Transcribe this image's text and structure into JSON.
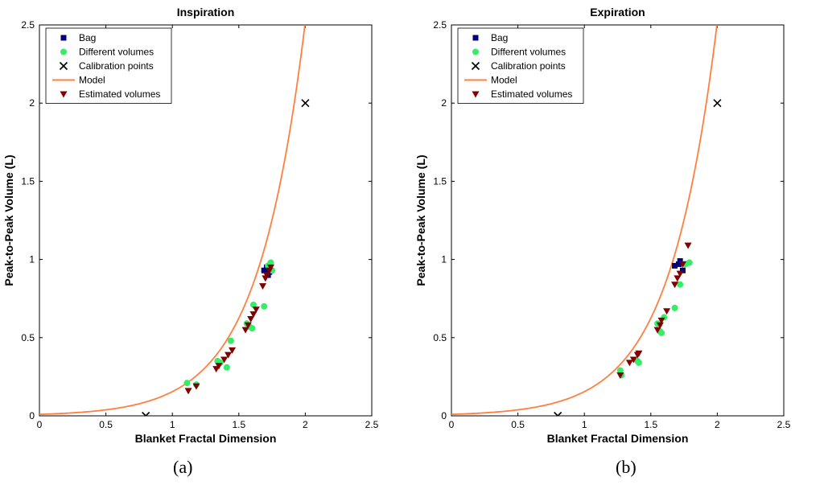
{
  "figure": {
    "panel_labels": [
      "(a)",
      "(b)"
    ]
  },
  "chart_data": [
    {
      "type": "scatter",
      "title": "Inspiration",
      "xlabel": "Blanket Fractal Dimension",
      "ylabel": "Peak-to-Peak Volume (L)",
      "xlim": [
        0,
        2.5
      ],
      "ylim": [
        0,
        2.5
      ],
      "xticks": [
        0,
        0.5,
        1,
        1.5,
        2,
        2.5
      ],
      "yticks": [
        0,
        0.5,
        1,
        1.5,
        2,
        2.5
      ],
      "xtick_labels": [
        "0",
        "0.5",
        "1",
        "1.5",
        "2",
        "2.5"
      ],
      "ytick_labels": [
        "0",
        "0.5",
        "1",
        "1.5",
        "2",
        "2.5"
      ],
      "legend_position": "top-left",
      "legend": [
        {
          "label": "Bag",
          "marker": "square",
          "color": "#00007f"
        },
        {
          "label": "Different volumes",
          "marker": "circle",
          "color": "#33ee66"
        },
        {
          "label": "Calibration points",
          "marker": "x",
          "color": "#000000"
        },
        {
          "label": "Model",
          "marker": "line",
          "color": "#ff7f3f"
        },
        {
          "label": "Estimated volumes",
          "marker": "triangle-down",
          "color": "#800000"
        }
      ],
      "model": {
        "name": "Model",
        "a": 0.00951,
        "b": 2.79,
        "x_range": [
          0,
          2.08
        ]
      },
      "series": [
        {
          "name": "Bag",
          "points": [
            [
              1.69,
              0.93
            ],
            [
              1.71,
              0.95
            ],
            [
              1.73,
              0.92
            ],
            [
              1.72,
              0.9
            ]
          ]
        },
        {
          "name": "Different volumes",
          "points": [
            [
              1.11,
              0.21
            ],
            [
              1.18,
              0.2
            ],
            [
              1.34,
              0.35
            ],
            [
              1.36,
              0.34
            ],
            [
              1.41,
              0.31
            ],
            [
              1.44,
              0.48
            ],
            [
              1.56,
              0.59
            ],
            [
              1.58,
              0.57
            ],
            [
              1.61,
              0.71
            ],
            [
              1.6,
              0.56
            ],
            [
              1.69,
              0.7
            ],
            [
              1.72,
              0.96
            ],
            [
              1.74,
              0.98
            ],
            [
              1.75,
              0.93
            ]
          ]
        },
        {
          "name": "Calibration points",
          "points": [
            [
              0.8,
              0.0
            ],
            [
              2.0,
              2.0
            ]
          ]
        },
        {
          "name": "Estimated volumes",
          "points": [
            [
              1.12,
              0.16
            ],
            [
              1.18,
              0.19
            ],
            [
              1.33,
              0.3
            ],
            [
              1.35,
              0.32
            ],
            [
              1.39,
              0.36
            ],
            [
              1.42,
              0.39
            ],
            [
              1.45,
              0.42
            ],
            [
              1.55,
              0.55
            ],
            [
              1.57,
              0.58
            ],
            [
              1.59,
              0.62
            ],
            [
              1.61,
              0.65
            ],
            [
              1.63,
              0.68
            ],
            [
              1.68,
              0.83
            ],
            [
              1.7,
              0.88
            ],
            [
              1.71,
              0.9
            ],
            [
              1.73,
              0.93
            ],
            [
              1.74,
              0.95
            ]
          ]
        }
      ]
    },
    {
      "type": "scatter",
      "title": "Expiration",
      "xlabel": "Blanket Fractal Dimension",
      "ylabel": "Peak-to-Peak Volume (L)",
      "xlim": [
        0,
        2.5
      ],
      "ylim": [
        0,
        2.5
      ],
      "xticks": [
        0,
        0.5,
        1,
        1.5,
        2,
        2.5
      ],
      "yticks": [
        0,
        0.5,
        1,
        1.5,
        2,
        2.5
      ],
      "xtick_labels": [
        "0",
        "0.5",
        "1",
        "1.5",
        "2",
        "2.5"
      ],
      "ytick_labels": [
        "0",
        "0.5",
        "1",
        "1.5",
        "2",
        "2.5"
      ],
      "legend_position": "top-left",
      "legend": [
        {
          "label": "Bag",
          "marker": "square",
          "color": "#00007f"
        },
        {
          "label": "Different volumes",
          "marker": "circle",
          "color": "#33ee66"
        },
        {
          "label": "Calibration points",
          "marker": "x",
          "color": "#000000"
        },
        {
          "label": "Model",
          "marker": "line",
          "color": "#ff7f3f"
        },
        {
          "label": "Estimated volumes",
          "marker": "triangle-down",
          "color": "#800000"
        }
      ],
      "model": {
        "name": "Model",
        "a": 0.00951,
        "b": 2.79,
        "x_range": [
          0,
          2.08
        ]
      },
      "series": [
        {
          "name": "Bag",
          "points": [
            [
              1.68,
              0.96
            ],
            [
              1.72,
              0.99
            ],
            [
              1.74,
              0.93
            ],
            [
              1.71,
              0.97
            ]
          ]
        },
        {
          "name": "Different volumes",
          "points": [
            [
              1.27,
              0.29
            ],
            [
              1.28,
              0.26
            ],
            [
              1.4,
              0.35
            ],
            [
              1.41,
              0.34
            ],
            [
              1.55,
              0.59
            ],
            [
              1.57,
              0.54
            ],
            [
              1.58,
              0.53
            ],
            [
              1.6,
              0.63
            ],
            [
              1.68,
              0.69
            ],
            [
              1.72,
              0.84
            ],
            [
              1.76,
              0.97
            ],
            [
              1.79,
              0.98
            ]
          ]
        },
        {
          "name": "Calibration points",
          "points": [
            [
              0.8,
              0.0
            ],
            [
              2.0,
              2.0
            ]
          ]
        },
        {
          "name": "Estimated volumes",
          "points": [
            [
              1.27,
              0.26
            ],
            [
              1.34,
              0.34
            ],
            [
              1.37,
              0.36
            ],
            [
              1.4,
              0.39
            ],
            [
              1.41,
              0.4
            ],
            [
              1.55,
              0.55
            ],
            [
              1.57,
              0.58
            ],
            [
              1.58,
              0.61
            ],
            [
              1.62,
              0.67
            ],
            [
              1.68,
              0.84
            ],
            [
              1.7,
              0.88
            ],
            [
              1.72,
              0.91
            ],
            [
              1.74,
              0.97
            ],
            [
              1.78,
              1.09
            ]
          ]
        }
      ]
    }
  ]
}
